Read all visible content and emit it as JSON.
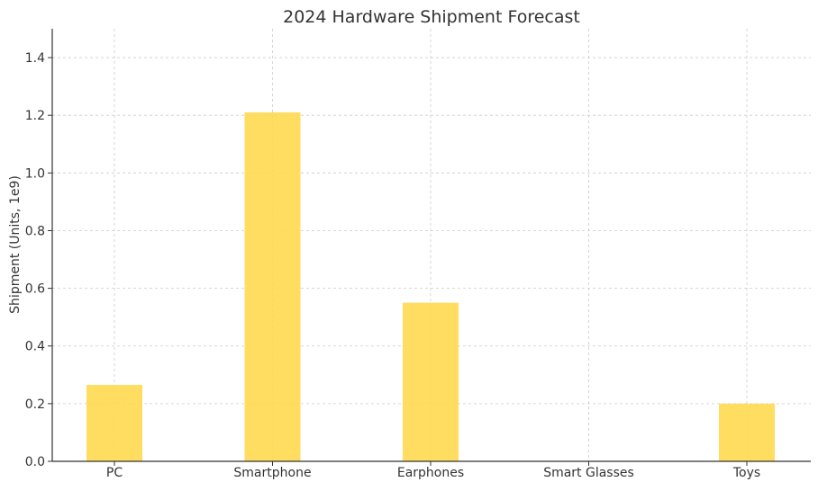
{
  "chart_data": {
    "type": "bar",
    "title": "2024 Hardware Shipment Forecast",
    "xlabel": "",
    "ylabel": "Shipment (Units, 1e9)",
    "categories": [
      "PC",
      "Smartphone",
      "Earphones",
      "Smart Glasses",
      "Toys"
    ],
    "values": [
      0.265,
      1.21,
      0.55,
      0.0,
      0.2
    ],
    "ylim": [
      0,
      1.5
    ],
    "yticks": [
      "0.0",
      "0.2",
      "0.4",
      "0.6",
      "0.8",
      "1.0",
      "1.2",
      "1.4"
    ],
    "grid": true,
    "bar_color": "#FFD94F",
    "bar_opacity": 0.9
  }
}
